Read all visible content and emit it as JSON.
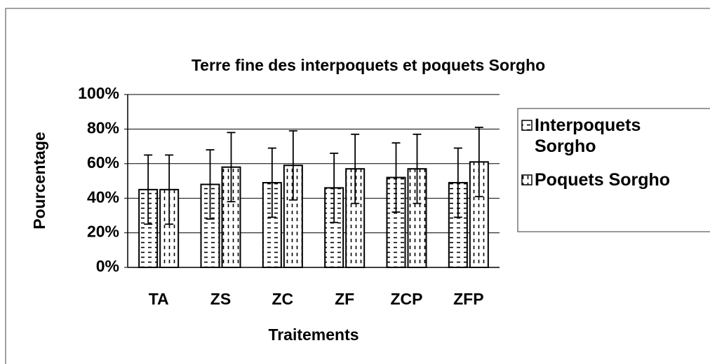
{
  "chart_data": {
    "type": "bar",
    "title": "Terre fine des interpoquets et poquets Sorgho",
    "x_label": "Traitements",
    "y_label": "Pourcentage",
    "categories": [
      "TA",
      "ZS",
      "ZC",
      "ZF",
      "ZCP",
      "ZFP"
    ],
    "series": [
      {
        "name": "Interpoquets Sorgho",
        "color": "#000000",
        "pattern": "horizontal-dashes",
        "values": [
          45,
          48,
          49,
          46,
          52,
          49
        ],
        "errors": [
          20,
          20,
          20,
          20,
          20,
          20
        ]
      },
      {
        "name": "Poquets Sorgho",
        "color": "#000000",
        "pattern": "vertical-dashes",
        "values": [
          45,
          58,
          59,
          57,
          57,
          61
        ],
        "errors": [
          20,
          20,
          20,
          20,
          20,
          20
        ]
      }
    ],
    "ylim": [
      0,
      100
    ],
    "yticks": [
      {
        "value": 0,
        "label": "0%"
      },
      {
        "value": 20,
        "label": "20%"
      },
      {
        "value": 40,
        "label": "40%"
      },
      {
        "value": 60,
        "label": "60%"
      },
      {
        "value": 80,
        "label": "80%"
      },
      {
        "value": 100,
        "label": "100%"
      }
    ],
    "grid": true,
    "legend": "right"
  }
}
